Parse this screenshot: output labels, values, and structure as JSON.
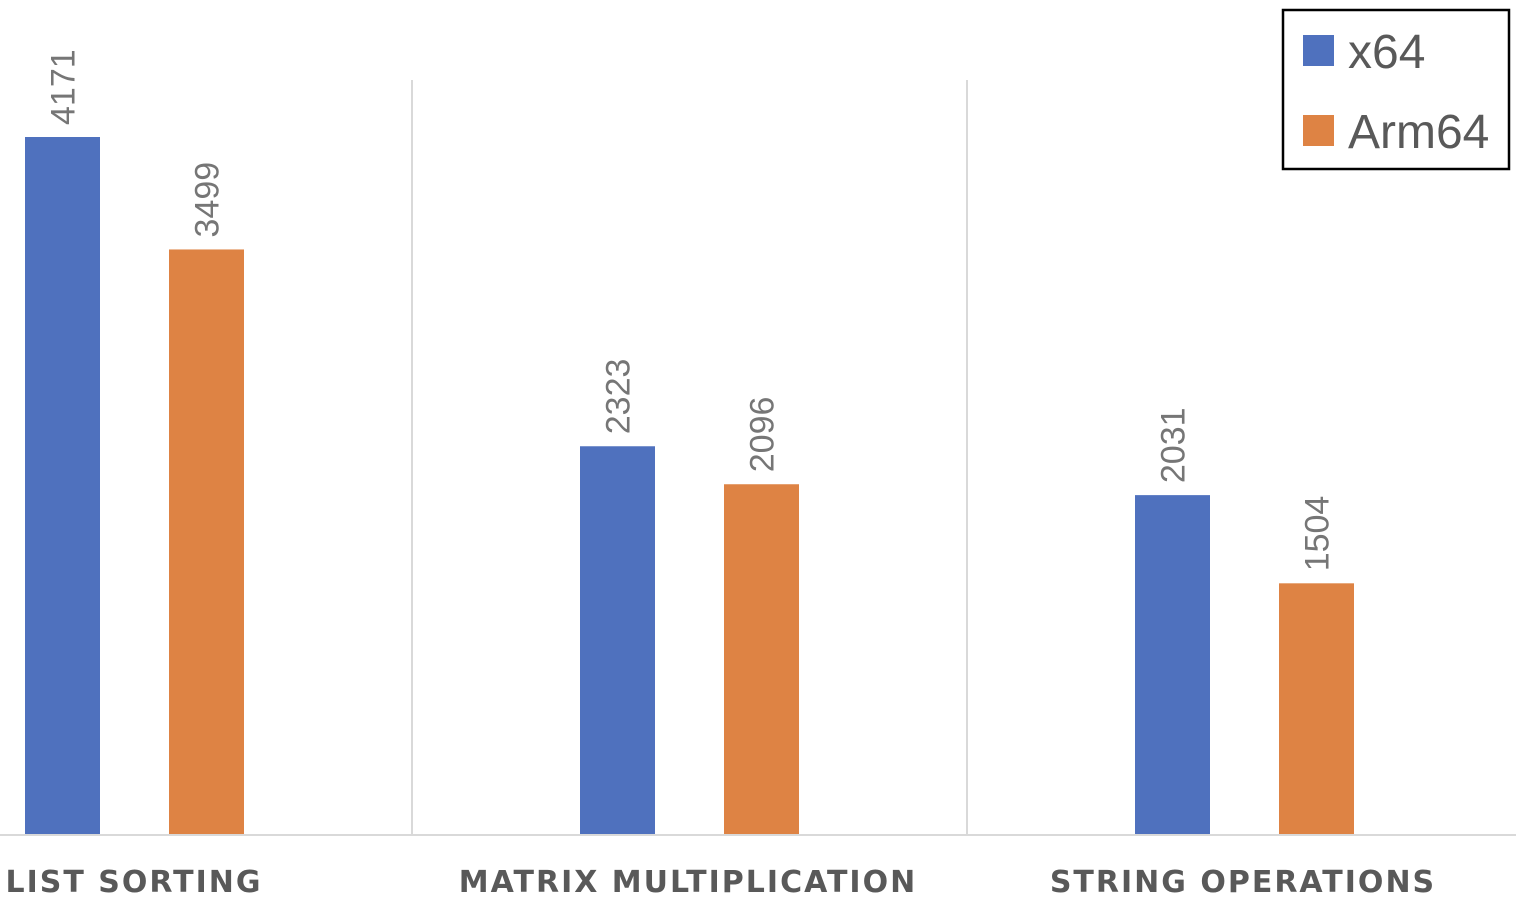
{
  "chart_data": {
    "type": "bar",
    "categories": [
      "LIST SORTING",
      "MATRIX MULTIPLICATION",
      "STRING OPERATIONS"
    ],
    "series": [
      {
        "name": "x64",
        "values": [
          4171,
          2323,
          2031
        ],
        "color": "#4f71be"
      },
      {
        "name": "Arm64",
        "values": [
          3499,
          2096,
          1504
        ],
        "color": "#de8344"
      }
    ],
    "ylim": [
      0,
      5000
    ],
    "grid": false,
    "legend_position": "top-right",
    "data_labels": "vertical"
  }
}
